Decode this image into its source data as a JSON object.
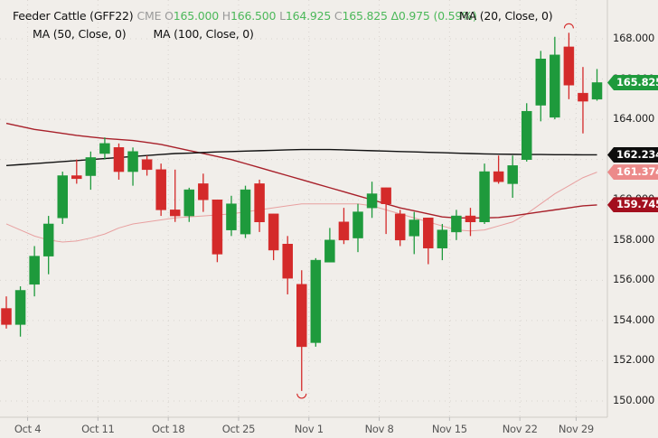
{
  "header": {
    "instrument": "Feeder Cattle (GFF22)",
    "exchange": "CME",
    "open_label": "O",
    "open": "165.000",
    "high_label": "H",
    "high": "166.500",
    "low_label": "L",
    "low": "164.925",
    "close_label": "C",
    "close": "165.825",
    "change": "Δ0.975 (0.59%)",
    "ma_20": "MA (20, Close, 0)",
    "ma_50": "MA (50, Close, 0)",
    "ma_100": "MA (100, Close, 0)"
  },
  "colors": {
    "background": "#f1eeea",
    "up": "#1e9a3c",
    "down": "#d42a2a",
    "ma20": "#e8a0a0",
    "ma50": "#a8202a",
    "ma100": "#111111",
    "grid": "#d8d4cf"
  },
  "badges": {
    "last": {
      "label": "165.825",
      "value": 165.825,
      "color": "#1e9a3c"
    },
    "ma100": {
      "label": "162.234",
      "value": 162.234,
      "color": "#0d0d0d"
    },
    "ma20": {
      "label": "161.374",
      "value": 161.374,
      "color": "#ec8a8a"
    },
    "ma50": {
      "label": "159.745",
      "value": 159.745,
      "color": "#a30f1e"
    }
  },
  "chart_data": {
    "type": "candlestick",
    "title": "Feeder Cattle (GFF22) CME",
    "xlabel": "",
    "ylabel": "",
    "ylim": [
      149.1,
      169.9
    ],
    "yticks": [
      150,
      152,
      154,
      156,
      158,
      160,
      162,
      164,
      166,
      168
    ],
    "ytick_labels": [
      "150.000",
      "152.000",
      "154.000",
      "156.000",
      "158.000",
      "160.000",
      "162.000",
      "164.000",
      "166.000",
      "168.000"
    ],
    "xtick_labels": [
      "Oct 4",
      "Oct 11",
      "Oct 18",
      "Oct 25",
      "Nov 1",
      "Nov 8",
      "Nov 15",
      "Nov 22",
      "Nov 29"
    ],
    "xtick_index": [
      1,
      6,
      11,
      16,
      21,
      26,
      31,
      36,
      40
    ],
    "grid": true,
    "legend": [
      "MA (20, Close, 0)",
      "MA (50, Close, 0)",
      "MA (100, Close, 0)"
    ],
    "candles": [
      {
        "o": 154.6,
        "h": 155.2,
        "l": 153.6,
        "c": 153.8
      },
      {
        "o": 153.8,
        "h": 155.7,
        "l": 153.2,
        "c": 155.5
      },
      {
        "o": 155.8,
        "h": 157.7,
        "l": 155.2,
        "c": 157.2
      },
      {
        "o": 157.2,
        "h": 159.2,
        "l": 156.3,
        "c": 158.8
      },
      {
        "o": 159.1,
        "h": 161.4,
        "l": 158.8,
        "c": 161.2
      },
      {
        "o": 161.2,
        "h": 162.0,
        "l": 160.8,
        "c": 161.05
      },
      {
        "o": 161.2,
        "h": 162.4,
        "l": 160.5,
        "c": 162.1
      },
      {
        "o": 162.3,
        "h": 163.1,
        "l": 162.0,
        "c": 162.8
      },
      {
        "o": 162.6,
        "h": 162.8,
        "l": 161.0,
        "c": 161.4
      },
      {
        "o": 161.4,
        "h": 162.6,
        "l": 160.7,
        "c": 162.4
      },
      {
        "o": 162.0,
        "h": 162.2,
        "l": 161.2,
        "c": 161.5
      },
      {
        "o": 161.5,
        "h": 161.8,
        "l": 159.2,
        "c": 159.5
      },
      {
        "o": 159.5,
        "h": 161.5,
        "l": 158.9,
        "c": 159.2
      },
      {
        "o": 159.2,
        "h": 160.6,
        "l": 158.9,
        "c": 160.5
      },
      {
        "o": 160.8,
        "h": 161.3,
        "l": 159.4,
        "c": 160.0
      },
      {
        "o": 160.0,
        "h": 160.0,
        "l": 156.9,
        "c": 157.3
      },
      {
        "o": 158.5,
        "h": 160.2,
        "l": 158.2,
        "c": 159.8
      },
      {
        "o": 158.3,
        "h": 160.7,
        "l": 158.1,
        "c": 160.5
      },
      {
        "o": 160.8,
        "h": 161.0,
        "l": 158.4,
        "c": 158.9
      },
      {
        "o": 159.3,
        "h": 159.3,
        "l": 157.0,
        "c": 157.5
      },
      {
        "o": 157.8,
        "h": 158.2,
        "l": 155.3,
        "c": 156.1
      },
      {
        "o": 155.8,
        "h": 156.5,
        "l": 150.5,
        "c": 152.7
      },
      {
        "o": 152.9,
        "h": 157.1,
        "l": 152.7,
        "c": 157.0
      },
      {
        "o": 156.9,
        "h": 158.6,
        "l": 156.9,
        "c": 158.0
      },
      {
        "o": 158.9,
        "h": 159.6,
        "l": 157.8,
        "c": 158.0
      },
      {
        "o": 158.1,
        "h": 159.8,
        "l": 157.4,
        "c": 159.4
      },
      {
        "o": 159.6,
        "h": 160.9,
        "l": 159.1,
        "c": 160.3
      },
      {
        "o": 160.6,
        "h": 160.6,
        "l": 158.3,
        "c": 159.8
      },
      {
        "o": 159.3,
        "h": 159.5,
        "l": 157.7,
        "c": 158.0
      },
      {
        "o": 158.2,
        "h": 159.4,
        "l": 157.3,
        "c": 159.0
      },
      {
        "o": 159.1,
        "h": 159.1,
        "l": 156.8,
        "c": 157.6
      },
      {
        "o": 157.6,
        "h": 158.8,
        "l": 157.0,
        "c": 158.5
      },
      {
        "o": 158.4,
        "h": 159.5,
        "l": 158.0,
        "c": 159.2
      },
      {
        "o": 159.2,
        "h": 159.6,
        "l": 158.2,
        "c": 158.9
      },
      {
        "o": 158.9,
        "h": 161.8,
        "l": 158.8,
        "c": 161.4
      },
      {
        "o": 161.4,
        "h": 162.2,
        "l": 160.8,
        "c": 160.9
      },
      {
        "o": 160.8,
        "h": 162.2,
        "l": 160.1,
        "c": 161.7
      },
      {
        "o": 162.0,
        "h": 164.8,
        "l": 161.9,
        "c": 164.4
      },
      {
        "o": 164.7,
        "h": 167.4,
        "l": 163.9,
        "c": 167.0
      },
      {
        "o": 164.1,
        "h": 168.1,
        "l": 164.0,
        "c": 167.2
      },
      {
        "o": 167.6,
        "h": 168.3,
        "l": 165.0,
        "c": 165.7
      },
      {
        "o": 165.3,
        "h": 166.6,
        "l": 163.3,
        "c": 164.9
      },
      {
        "o": 165.0,
        "h": 166.5,
        "l": 164.925,
        "c": 165.825
      }
    ],
    "series": [
      {
        "name": "MA (100, Close, 0)",
        "color": "#111111",
        "values": [
          161.7,
          161.75,
          161.8,
          161.85,
          161.9,
          161.95,
          162.0,
          162.05,
          162.1,
          162.15,
          162.2,
          162.25,
          162.3,
          162.32,
          162.35,
          162.38,
          162.4,
          162.42,
          162.44,
          162.46,
          162.48,
          162.5,
          162.5,
          162.5,
          162.48,
          162.46,
          162.44,
          162.42,
          162.4,
          162.38,
          162.36,
          162.34,
          162.32,
          162.3,
          162.28,
          162.27,
          162.26,
          162.25,
          162.25,
          162.24,
          162.24,
          162.234,
          162.234
        ]
      },
      {
        "name": "MA (50, Close, 0)",
        "color": "#a8202a",
        "values": [
          163.8,
          163.65,
          163.5,
          163.4,
          163.3,
          163.2,
          163.12,
          163.05,
          163.0,
          162.95,
          162.85,
          162.75,
          162.6,
          162.45,
          162.3,
          162.15,
          162.0,
          161.8,
          161.6,
          161.4,
          161.2,
          161.0,
          160.8,
          160.6,
          160.4,
          160.2,
          160.0,
          159.8,
          159.6,
          159.45,
          159.3,
          159.15,
          159.1,
          159.1,
          159.1,
          159.12,
          159.2,
          159.3,
          159.4,
          159.5,
          159.6,
          159.7,
          159.745
        ]
      },
      {
        "name": "MA (20, Close, 0)",
        "color": "#e8a0a0",
        "values": [
          158.8,
          158.5,
          158.2,
          158.0,
          157.9,
          157.95,
          158.1,
          158.3,
          158.6,
          158.8,
          158.9,
          159.0,
          159.1,
          159.15,
          159.2,
          159.25,
          159.3,
          159.4,
          159.5,
          159.6,
          159.7,
          159.8,
          159.8,
          159.8,
          159.8,
          159.8,
          159.7,
          159.5,
          159.3,
          159.1,
          158.9,
          158.7,
          158.5,
          158.45,
          158.5,
          158.7,
          158.9,
          159.3,
          159.8,
          160.3,
          160.7,
          161.1,
          161.374
        ]
      }
    ],
    "markers": [
      {
        "type": "high-marker",
        "index": 40,
        "value": 168.3
      },
      {
        "type": "low-marker",
        "index": 21,
        "value": 150.5
      }
    ]
  }
}
